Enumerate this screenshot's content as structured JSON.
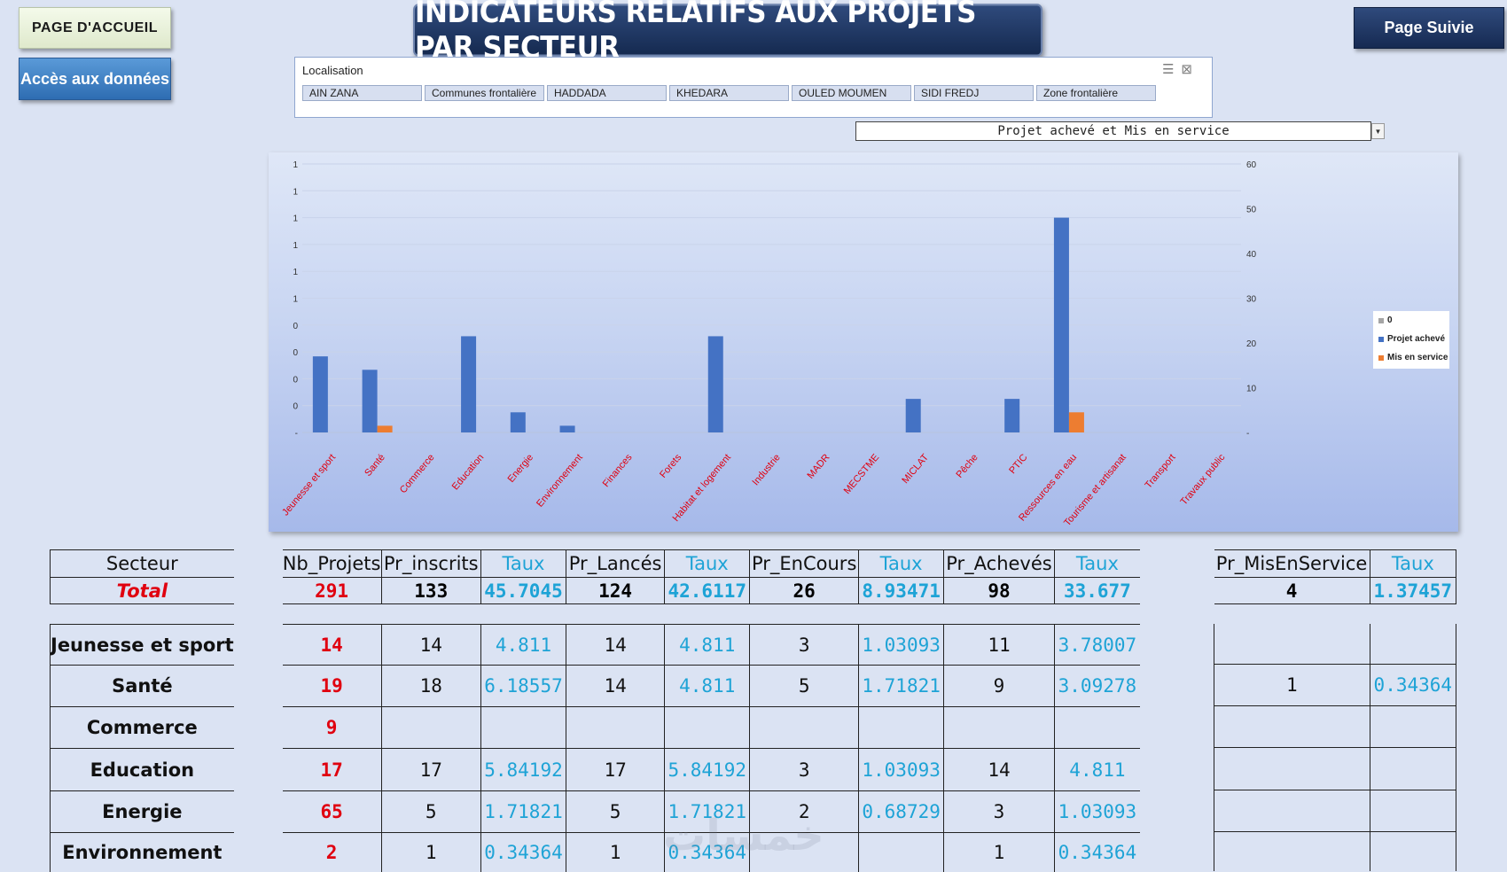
{
  "buttons": {
    "home": "PAGE D'ACCUEIL",
    "data_access": "Accès aux données",
    "next": "Page Suivie"
  },
  "title": "INDICATEURS RELATIFS AUX  PROJETS PAR SECTEUR",
  "slicer": {
    "title": "Localisation",
    "items": [
      "AIN ZANA",
      "Communes frontalière",
      "HADDADA",
      "KHEDARA",
      "OULED MOUMEN",
      "SIDI FREDJ",
      "Zone frontalière"
    ]
  },
  "dropdown": {
    "selected": "Projet achevé et Mis en service"
  },
  "legend": [
    {
      "label": "0",
      "color": "#a5a5a5"
    },
    {
      "label": "Projet achevé",
      "color": "#4472c4"
    },
    {
      "label": "Mis en service",
      "color": "#ed7d31"
    }
  ],
  "chart_data": {
    "type": "bar",
    "categories": [
      "Jeunesse et sport",
      "Santé",
      "Commerce",
      "Education",
      "Energie",
      "Environnement",
      "Finances",
      "Forets",
      "Habitat et logement",
      "Industrie",
      "MADR",
      "MECSTME",
      "MICLAT",
      "Pêche",
      "PTIC",
      "Ressources en eau",
      "Tourisme et artisanat",
      "Transport",
      "Travaux public"
    ],
    "series": [
      {
        "name": "Projet achevé",
        "color": "#4472c4",
        "values": [
          17,
          14,
          0,
          21.5,
          4.5,
          1.5,
          0,
          0,
          21.5,
          0,
          0,
          0,
          7.5,
          0,
          7.5,
          48,
          0,
          0,
          0
        ]
      },
      {
        "name": "Mis en service",
        "color": "#ed7d31",
        "values": [
          0,
          1.5,
          0,
          0,
          0,
          0,
          0,
          0,
          0,
          0,
          0,
          0,
          0,
          0,
          0,
          4.5,
          0,
          0,
          0
        ]
      }
    ],
    "left_axis_ticks": [
      "-",
      "0",
      "0",
      "0",
      "0",
      "1",
      "1",
      "1",
      "1",
      "1",
      "1"
    ],
    "right_axis_ticks": [
      "-",
      "10",
      "20",
      "30",
      "40",
      "50",
      "60"
    ],
    "ylim": [
      0,
      60
    ]
  },
  "table": {
    "headers": [
      "Secteur",
      "Nb_Projets",
      "Pr_inscrits",
      "Taux",
      "Pr_Lancés",
      "Taux",
      "Pr_EnCours",
      "Taux",
      "Pr_Achevés",
      "Taux"
    ],
    "headers_right": [
      "Pr_MisEnService",
      "Taux"
    ],
    "total": [
      "Total",
      "291",
      "133",
      "45.7045",
      "124",
      "42.6117",
      "26",
      "8.93471",
      "98",
      "33.677"
    ],
    "total_right": [
      "4",
      "1.37457"
    ],
    "rows": [
      [
        "Jeunesse et  sport",
        "14",
        "14",
        "4.811",
        "14",
        "4.811",
        "3",
        "1.03093",
        "11",
        "3.78007"
      ],
      [
        "Santé",
        "19",
        "18",
        "6.18557",
        "14",
        "4.811",
        "5",
        "1.71821",
        "9",
        "3.09278"
      ],
      [
        "Commerce",
        "9",
        "",
        "",
        "",
        "",
        "",
        "",
        "",
        ""
      ],
      [
        "Education",
        "17",
        "17",
        "5.84192",
        "17",
        "5.84192",
        "3",
        "1.03093",
        "14",
        "4.811"
      ],
      [
        "Energie",
        "65",
        "5",
        "1.71821",
        "5",
        "1.71821",
        "2",
        "0.68729",
        "3",
        "1.03093"
      ],
      [
        "Environnement",
        "2",
        "1",
        "0.34364",
        "1",
        "0.34364",
        "",
        "",
        "1",
        "0.34364"
      ]
    ],
    "rows_right": [
      [
        "",
        ""
      ],
      [
        "1",
        "0.34364"
      ],
      [
        "",
        ""
      ],
      [
        "",
        ""
      ],
      [
        "",
        ""
      ],
      [
        "",
        ""
      ]
    ]
  }
}
